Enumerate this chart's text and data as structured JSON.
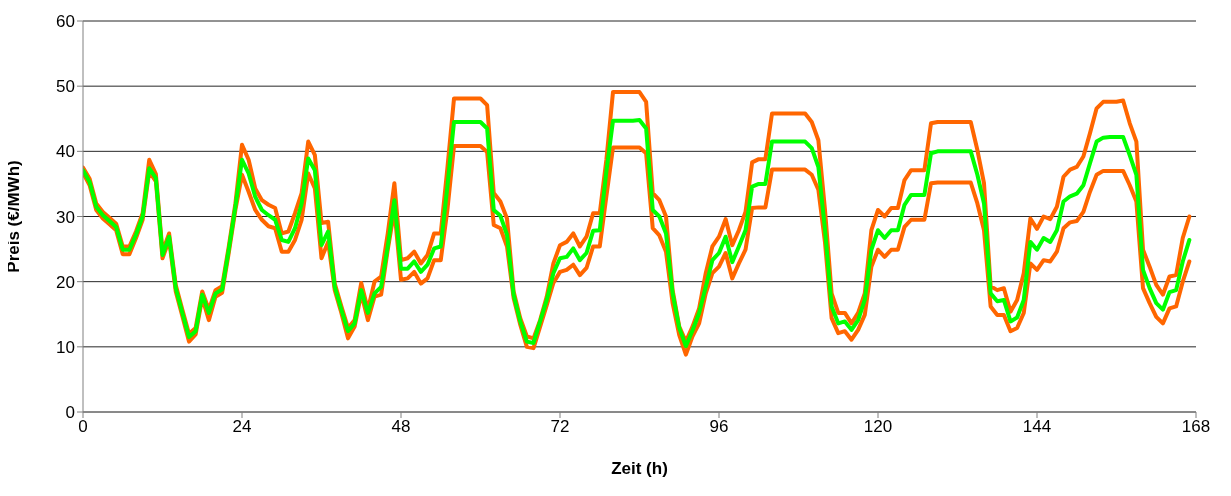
{
  "chart_data": {
    "type": "line",
    "xlabel": "Zeit (h)",
    "ylabel": "Preis (€/MWh)",
    "x": [
      0,
      1,
      2,
      3,
      4,
      5,
      6,
      7,
      8,
      9,
      10,
      11,
      12,
      13,
      14,
      15,
      16,
      17,
      18,
      19,
      20,
      21,
      22,
      23,
      24,
      25,
      26,
      27,
      28,
      29,
      30,
      31,
      32,
      33,
      34,
      35,
      36,
      37,
      38,
      39,
      40,
      41,
      42,
      43,
      44,
      45,
      46,
      47,
      48,
      49,
      50,
      51,
      52,
      53,
      54,
      55,
      56,
      57,
      58,
      59,
      60,
      61,
      62,
      63,
      64,
      65,
      66,
      67,
      68,
      69,
      70,
      71,
      72,
      73,
      74,
      75,
      76,
      77,
      78,
      79,
      80,
      81,
      82,
      83,
      84,
      85,
      86,
      87,
      88,
      89,
      90,
      91,
      92,
      93,
      94,
      95,
      96,
      97,
      98,
      99,
      100,
      101,
      102,
      103,
      104,
      105,
      106,
      107,
      108,
      109,
      110,
      111,
      112,
      113,
      114,
      115,
      116,
      117,
      118,
      119,
      120,
      121,
      122,
      123,
      124,
      125,
      126,
      127,
      128,
      129,
      130,
      131,
      132,
      133,
      134,
      135,
      136,
      137,
      138,
      139,
      140,
      141,
      142,
      143,
      144,
      145,
      146,
      147,
      148,
      149,
      150,
      151,
      152,
      153,
      154,
      155,
      156,
      157,
      158,
      159,
      160,
      161,
      162,
      163,
      164,
      165,
      166,
      167
    ],
    "series": [
      {
        "color": "#ff6600",
        "values": [
          37.5,
          35.8,
          32,
          30.7,
          29.8,
          28.9,
          25.4,
          25.4,
          27.7,
          30.5,
          38.7,
          36.5,
          24.6,
          27.4,
          19.5,
          15.7,
          12,
          12.9,
          18.5,
          15.7,
          18.7,
          19.3,
          25.4,
          32,
          41,
          38.7,
          34.3,
          32.5,
          31.8,
          31.3,
          27.4,
          27.7,
          30.5,
          33.6,
          41.5,
          39.4,
          29,
          29.2,
          19.7,
          16.2,
          12.9,
          14.1,
          19.8,
          15.7,
          20,
          20.8,
          27.4,
          35.1,
          23.3,
          23.6,
          24.6,
          22.8,
          24.1,
          27.4,
          27.4,
          37.4,
          48.1,
          48.1,
          48.1,
          48.1,
          48.1,
          47.1,
          33.6,
          32.3,
          29.7,
          18.5,
          14.4,
          11.6,
          11.3,
          14.1,
          17.7,
          22.8,
          25.6,
          26.1,
          27.4,
          25.4,
          26.9,
          30.5,
          30.5,
          38.7,
          49.1,
          49.1,
          49.1,
          49.1,
          49.1,
          47.6,
          33.6,
          32.5,
          30,
          18.7,
          13.1,
          10.8,
          13.1,
          15.9,
          21.3,
          25.4,
          26.9,
          29.6,
          25.6,
          27.9,
          30.7,
          38.3,
          38.8,
          38.8,
          45.8,
          45.8,
          45.8,
          45.8,
          45.8,
          45.8,
          44.5,
          41.7,
          31,
          18.2,
          15.2,
          15.2,
          13.6,
          15.2,
          18.2,
          27.9,
          31,
          30,
          31.3,
          31.3,
          35.6,
          37.1,
          37.1,
          37.1,
          44.3,
          44.5,
          44.5,
          44.5,
          44.5,
          44.5,
          44.5,
          40.2,
          35.1,
          19.3,
          18.7,
          19,
          15.4,
          17.2,
          21.3,
          29.7,
          28.1,
          30,
          29.6,
          31.5,
          36.1,
          37.2,
          37.6,
          39.2,
          42.8,
          46.6,
          47.6,
          47.6,
          47.6,
          47.8,
          44.3,
          41.5,
          24.9,
          22.3,
          19.5,
          18,
          20.8,
          21,
          26.7,
          30
        ]
      },
      {
        "color": "#ff6600",
        "values": [
          36.7,
          34.8,
          31,
          29.7,
          28.8,
          27.9,
          24.2,
          24.2,
          26.7,
          29.5,
          36.9,
          35.4,
          23.6,
          26.4,
          18.5,
          14.7,
          10.8,
          11.9,
          17.5,
          14.1,
          17.7,
          18.3,
          24.4,
          31,
          36.4,
          33.8,
          31,
          29.5,
          28.5,
          28.2,
          24.6,
          24.6,
          26.4,
          29.5,
          36.6,
          34.3,
          23.6,
          26.1,
          18.7,
          15.2,
          11.3,
          13.1,
          18.2,
          14.1,
          17.7,
          18,
          24.9,
          31,
          20.3,
          20.5,
          21.5,
          19.7,
          20.5,
          23.3,
          23.3,
          31,
          40.8,
          40.8,
          40.8,
          40.8,
          40.8,
          39.9,
          28.7,
          28.2,
          25.4,
          17.5,
          13.4,
          10,
          9.8,
          13.1,
          16.4,
          19.8,
          21.5,
          21.8,
          22.6,
          21,
          22.1,
          25.4,
          25.4,
          33.1,
          40.6,
          40.6,
          40.6,
          40.6,
          40.6,
          39.7,
          28.2,
          27.1,
          24.6,
          16.7,
          11.8,
          8.8,
          11.6,
          13.6,
          18.2,
          21.3,
          22.3,
          24.4,
          20.5,
          22.8,
          24.9,
          31.3,
          31.4,
          31.4,
          37.2,
          37.2,
          37.2,
          37.2,
          37.2,
          37.2,
          36.4,
          34.1,
          26,
          14.4,
          12.1,
          12.4,
          11.1,
          12.6,
          14.9,
          22.3,
          24.9,
          23.8,
          24.9,
          24.9,
          28.4,
          29.5,
          29.5,
          29.5,
          35.1,
          35.2,
          35.2,
          35.2,
          35.2,
          35.2,
          35.2,
          32,
          27.9,
          16.2,
          14.9,
          14.9,
          12.4,
          12.9,
          15.2,
          22.8,
          21.8,
          23.3,
          23.1,
          24.6,
          28.2,
          29.1,
          29.3,
          30.7,
          33.8,
          36.4,
          37,
          37,
          37,
          37,
          34.8,
          32.3,
          19,
          16.7,
          14.6,
          13.6,
          15.9,
          16.2,
          20,
          23.1
        ]
      },
      {
        "color": "#00ff00",
        "values": [
          37.1,
          35.3,
          31.5,
          30.2,
          29.3,
          28.4,
          24.9,
          24.9,
          27.2,
          30,
          37.4,
          35.9,
          24.1,
          26.9,
          19,
          15.2,
          11.5,
          12.4,
          18,
          15.2,
          18.2,
          18.8,
          24.9,
          31.5,
          38.7,
          36.6,
          33,
          31,
          30.2,
          29.5,
          26.4,
          26.1,
          28.2,
          32,
          38.9,
          37.1,
          25.6,
          27.7,
          19.2,
          15.7,
          12.4,
          13.6,
          18.7,
          15.2,
          18.2,
          19.2,
          25.4,
          32.5,
          22,
          22,
          23.1,
          21.5,
          22.6,
          25.1,
          25.4,
          34.6,
          44.5,
          44.5,
          44.5,
          44.5,
          44.5,
          43.5,
          31,
          30.1,
          27.2,
          18,
          13.9,
          10.8,
          10.6,
          13.9,
          17.2,
          21.3,
          23.6,
          23.8,
          25.1,
          23.3,
          24.4,
          27.8,
          27.9,
          36.9,
          44.7,
          44.7,
          44.7,
          44.7,
          44.8,
          43.5,
          31,
          30,
          27.4,
          18.2,
          12.9,
          10.1,
          12.5,
          15.2,
          19.2,
          23.3,
          24.4,
          26.9,
          23,
          25.4,
          27.9,
          34.6,
          35,
          35,
          41.5,
          41.5,
          41.5,
          41.5,
          41.5,
          41.5,
          40.5,
          37.6,
          28,
          16.2,
          13.6,
          13.9,
          12.6,
          14.1,
          17.2,
          24.9,
          27.9,
          26.7,
          27.9,
          27.9,
          31.8,
          33.3,
          33.3,
          33.3,
          39.7,
          40,
          40,
          40,
          40,
          40,
          40,
          36.4,
          32,
          18.2,
          17,
          17.2,
          13.9,
          14.5,
          17.2,
          26.1,
          24.9,
          26.7,
          26.1,
          27.9,
          32.3,
          33.1,
          33.5,
          34.8,
          38.2,
          41.5,
          42.1,
          42.2,
          42.2,
          42.2,
          39.4,
          36.4,
          21.8,
          19,
          16.7,
          15.7,
          18.4,
          18.7,
          23.1,
          26.4
        ]
      }
    ],
    "xlim": [
      0,
      168
    ],
    "xticks": [
      0,
      24,
      48,
      72,
      96,
      120,
      144,
      168
    ],
    "ylim": [
      0,
      60
    ],
    "yticks": [
      0,
      10,
      20,
      30,
      40,
      50,
      60
    ],
    "grid": "y"
  }
}
